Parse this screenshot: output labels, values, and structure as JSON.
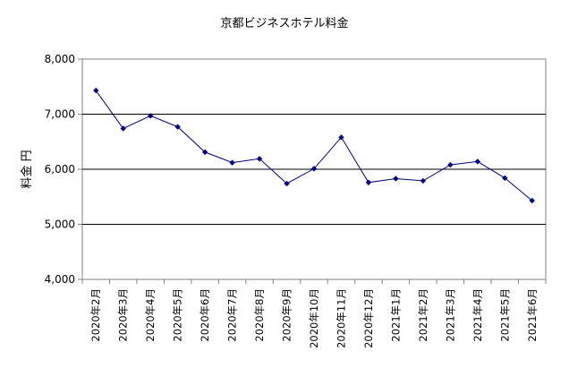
{
  "chart_data": {
    "type": "line",
    "title": "京都ビジネスホテル料金",
    "ylabel": "料金 円",
    "xlabel": "",
    "ylim": [
      4000,
      8000
    ],
    "yticks": [
      4000,
      5000,
      6000,
      7000,
      8000
    ],
    "ytick_labels": [
      "4,000",
      "5,000",
      "6,000",
      "7,000",
      "8,000"
    ],
    "grid": "horizontal",
    "legend": "none",
    "line_color": "#000080",
    "categories": [
      "2020年2月",
      "2020年3月",
      "2020年4月",
      "2020年5月",
      "2020年6月",
      "2020年7月",
      "2020年8月",
      "2020年9月",
      "2020年10月",
      "2020年11月",
      "2020年12月",
      "2021年1月",
      "2021年2月",
      "2021年3月",
      "2021年4月",
      "2021年5月",
      "2021年6月"
    ],
    "series": [
      {
        "values": [
          7430,
          6740,
          6970,
          6770,
          6310,
          6120,
          6190,
          5740,
          6010,
          6580,
          5760,
          5830,
          5790,
          6080,
          6140,
          5840,
          5430
        ]
      }
    ]
  }
}
